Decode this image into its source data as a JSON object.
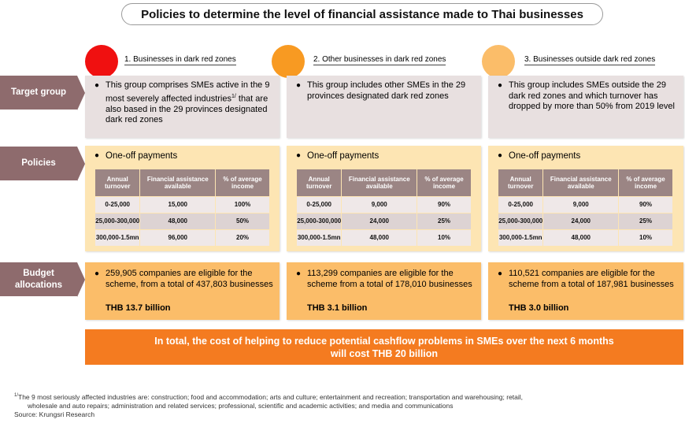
{
  "title": "Policies to determine the level of financial assistance made to Thai businesses",
  "columns": [
    {
      "label": "1. Businesses in dark red zones",
      "color": "#f01010"
    },
    {
      "label": "2. Other businesses in dark red zones",
      "color": "#f89a22"
    },
    {
      "label": "3. Businesses outside dark red zones",
      "color": "#fbbd69"
    }
  ],
  "row_labels": {
    "target": "Target group",
    "policies": "Policies",
    "budget_line1": "Budget",
    "budget_line2": "allocations"
  },
  "target_group": [
    {
      "text_a": "This group comprises SMEs active in the 9 most severely affected industries",
      "sup": "1/",
      "text_b": " that are also based in the 29 provinces designated dark red zones"
    },
    {
      "text_a": "This group includes other SMEs in the 29 provinces designated dark red zones",
      "sup": "",
      "text_b": ""
    },
    {
      "text_a": "This group includes SMEs outside the 29 dark red zones and which turnover has dropped by more than 50% from 2019 level",
      "sup": "",
      "text_b": ""
    }
  ],
  "policies": {
    "heading": "One-off payments",
    "headers": [
      "Annual turnover",
      "Financial assistance available",
      "% of average income"
    ],
    "tables": [
      [
        [
          "0-25,000",
          "15,000",
          "100%"
        ],
        [
          "25,000-300,000",
          "48,000",
          "50%"
        ],
        [
          "300,000-1.5mn",
          "96,000",
          "20%"
        ]
      ],
      [
        [
          "0-25,000",
          "9,000",
          "90%"
        ],
        [
          "25,000-300,000",
          "24,000",
          "25%"
        ],
        [
          "300,000-1.5mn",
          "48,000",
          "10%"
        ]
      ],
      [
        [
          "0-25,000",
          "9,000",
          "90%"
        ],
        [
          "25,000-300,000",
          "24,000",
          "25%"
        ],
        [
          "300,000-1.5mn",
          "48,000",
          "10%"
        ]
      ]
    ]
  },
  "budget": [
    {
      "text": "259,905 companies are eligible for the scheme, from a total of 437,803 businesses",
      "total": "THB 13.7 billion"
    },
    {
      "text": "113,299 companies are eligible for the scheme from a total of 178,010 businesses",
      "total": "THB 3.1 billion"
    },
    {
      "text": "110,521 companies are eligible for the scheme from a total of 187,981 businesses",
      "total": "THB 3.0 billion"
    }
  ],
  "total_line1": "In total, the cost of helping to reduce potential cashflow problems in SMEs over the next 6 months",
  "total_line2": "will cost THB 20 billion",
  "footnote": {
    "sup": "1/",
    "line1": "The 9 most seriously affected industries are: construction; food and accommodation; arts and culture; entertainment and recreation; transportation and warehousing; retail,",
    "line2": "wholesale and auto repairs; administration and related services; professional, scientific and academic activities; and media and communications",
    "source": "Source: Krungsri Research"
  },
  "colors": {
    "label_bg": "#8e6b6d",
    "target_bg": "#e8e0e0",
    "policy_bg": "#fde5b3",
    "budget_bg": "#fbbd69",
    "total_bg": "#f47b20"
  }
}
